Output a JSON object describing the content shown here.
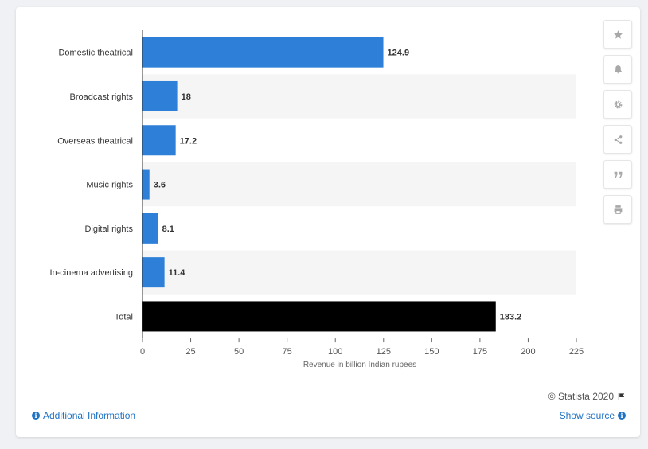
{
  "chart_data": {
    "type": "bar",
    "orientation": "horizontal",
    "categories": [
      "Domestic theatrical",
      "Broadcast rights",
      "Overseas theatrical",
      "Music rights",
      "Digital rights",
      "In-cinema advertising",
      "Total"
    ],
    "values": [
      124.9,
      18,
      17.2,
      3.6,
      8.1,
      11.4,
      183.2
    ],
    "data_labels": [
      "124.9",
      "18",
      "17.2",
      "3.6",
      "8.1",
      "11.4",
      "183.2"
    ],
    "title": "",
    "xlabel": "Revenue in billion Indian rupees",
    "ylabel": "",
    "xlim": [
      0,
      225
    ],
    "xticks": [
      0,
      25,
      50,
      75,
      100,
      125,
      150,
      175,
      200,
      225
    ],
    "grid": "alternating row bands",
    "colors": {
      "bar": "#2d7fd8",
      "highlight_bar": "#000000",
      "band": "#f5f5f5",
      "label": "#333333"
    }
  },
  "toolbar": {
    "icons": [
      "star-icon",
      "bell-icon",
      "gear-icon",
      "share-icon",
      "quote-icon",
      "print-icon"
    ]
  },
  "footer": {
    "credit": "© Statista 2020",
    "additional_info": "Additional Information",
    "show_source": "Show source"
  }
}
